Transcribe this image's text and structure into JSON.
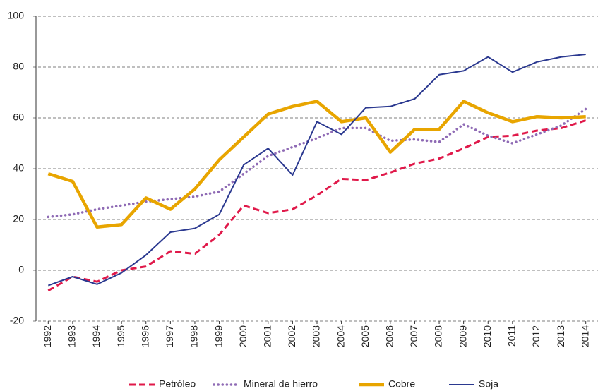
{
  "chart_data": {
    "type": "line",
    "categories": [
      "1992",
      "1993",
      "1994",
      "1995",
      "1996",
      "1997",
      "1998",
      "1999",
      "2000",
      "2001",
      "2002",
      "2003",
      "2004",
      "2005",
      "2006",
      "2007",
      "2008",
      "2009",
      "2010",
      "2011",
      "2012",
      "2013",
      "2014"
    ],
    "series": [
      {
        "name": "Petróleo",
        "color": "#e0194a",
        "style": "dashed",
        "values": [
          -8,
          -2.5,
          -4.5,
          0,
          1.5,
          7.5,
          6.5,
          14,
          25.5,
          22.5,
          24,
          29.5,
          36,
          35.5,
          38.5,
          42,
          44,
          48,
          52.5,
          53,
          55,
          56,
          59
        ]
      },
      {
        "name": "Mineral de hierro",
        "color": "#8f6bb5",
        "style": "dotted",
        "values": [
          21,
          22,
          24,
          25.5,
          27,
          28,
          29,
          31,
          38,
          45,
          48.5,
          52,
          56,
          56,
          51,
          51.5,
          50.5,
          57.5,
          53,
          50,
          53.5,
          57,
          63.5
        ]
      },
      {
        "name": "Cobre",
        "color": "#e8a500",
        "style": "thick",
        "values": [
          38,
          35,
          17,
          18,
          28.5,
          24,
          32,
          43.5,
          52.5,
          61.5,
          64.5,
          66.5,
          58.5,
          60,
          46.5,
          55.5,
          55.5,
          66.5,
          62,
          58.5,
          60.5,
          60,
          60.5
        ]
      },
      {
        "name": "Soja",
        "color": "#2b3990",
        "style": "solid",
        "values": [
          -6,
          -2.5,
          -5.5,
          -1,
          6,
          15,
          16.5,
          22,
          41.5,
          48,
          37.5,
          58.5,
          53.5,
          64,
          64.5,
          67.5,
          77,
          78.5,
          84,
          78,
          82,
          84,
          85
        ]
      }
    ],
    "ylim": [
      -20,
      100
    ],
    "yticks": [
      -20,
      0,
      20,
      40,
      60,
      80,
      100
    ],
    "grid": true,
    "legend": "bottom"
  }
}
